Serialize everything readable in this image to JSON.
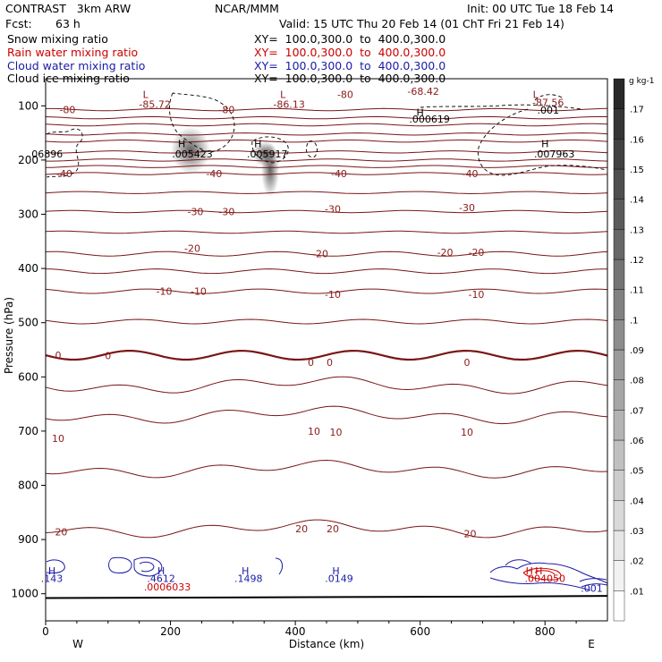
{
  "header": {
    "model": "CONTRAST   3km ARW",
    "center": "NCAR/MMM",
    "init": "Init: 00 UTC Tue 18 Feb 14",
    "fcst_label": "Fcst:",
    "fcst_value": "63 h",
    "valid": "Valid: 15 UTC Thu 20 Feb 14 (01 ChT Fri 21 Feb 14)"
  },
  "fields": [
    {
      "name": "Snow mixing ratio",
      "color": "#000000",
      "xy": "XY=  100.0,300.0  to  400.0,300.0"
    },
    {
      "name": "Rain water mixing ratio",
      "color": "#cc0000",
      "xy": "XY=  100.0,300.0  to  400.0,300.0"
    },
    {
      "name": "Cloud water mixing ratio",
      "color": "#1a1aa6",
      "xy": "XY=  100.0,300.0  to  400.0,300.0"
    },
    {
      "name": "Cloud ice mixing ratio",
      "color": "#000000",
      "xy": "XY=  100.0,300.0  to  400.0,300.0"
    }
  ],
  "chart_data": {
    "type": "contour",
    "xlabel": "Distance (km)",
    "ylabel": "Pressure (hPa)",
    "xlim": [
      0,
      900
    ],
    "ylim": [
      1050,
      50
    ],
    "xticks": [
      0,
      200,
      400,
      600,
      800
    ],
    "yticks": [
      100,
      200,
      300,
      400,
      500,
      600,
      700,
      800,
      900,
      1000
    ],
    "left_end_label": "W",
    "right_end_label": "E",
    "temperature_contours": [
      {
        "label": "-80",
        "p": 107
      },
      {
        "label": "-40",
        "p": 225
      },
      {
        "label": "-30",
        "p": 295
      },
      {
        "label": "-20",
        "p": 373
      },
      {
        "label": "-10",
        "p": 442
      },
      {
        "label": "0",
        "p": 560
      },
      {
        "label": "10",
        "p": 670
      },
      {
        "label": "20",
        "p": 880
      }
    ],
    "colorbar": {
      "unit": "g kg-1",
      "ticks": [
        ".01",
        ".02",
        ".03",
        ".04",
        ".05",
        ".06",
        ".07",
        ".08",
        ".09",
        ".1",
        ".11",
        ".12",
        ".13",
        ".14",
        ".15",
        ".16",
        ".17"
      ]
    },
    "annotations": [
      {
        "text": "L",
        "x": 160,
        "p": 79,
        "color": "#8b1a1a"
      },
      {
        "text": "-85.72",
        "x": 175,
        "p": 97,
        "color": "#8b1a1a"
      },
      {
        "text": "L",
        "x": 380,
        "p": 79,
        "color": "#8b1a1a"
      },
      {
        "text": "-86.13",
        "x": 390,
        "p": 97,
        "color": "#8b1a1a"
      },
      {
        "text": "-80",
        "x": 480,
        "p": 79,
        "color": "#8b1a1a"
      },
      {
        "text": "-68.42",
        "x": 605,
        "p": 73,
        "color": "#8b1a1a"
      },
      {
        "text": "L",
        "x": 785,
        "p": 79,
        "color": "#8b1a1a"
      },
      {
        "text": "-87.56",
        "x": 805,
        "p": 94,
        "color": "#8b1a1a"
      },
      {
        "text": "-80",
        "x": 35,
        "p": 107,
        "color": "#8b1a1a"
      },
      {
        "text": "-80",
        "x": 290,
        "p": 107,
        "color": "#8b1a1a"
      },
      {
        "text": "H",
        "x": 600,
        "p": 112,
        "color": "#000000"
      },
      {
        "text": ".000619",
        "x": 615,
        "p": 124,
        "color": "#000000"
      },
      {
        "text": ".001",
        "x": 805,
        "p": 108,
        "color": "#000000"
      },
      {
        "text": ".06896",
        "x": 0,
        "p": 189,
        "color": "#000000"
      },
      {
        "text": "H",
        "x": 218,
        "p": 170,
        "color": "#000000"
      },
      {
        "text": ".005423",
        "x": 235,
        "p": 189,
        "color": "#000000"
      },
      {
        "text": "H",
        "x": 340,
        "p": 170,
        "color": "#000000"
      },
      {
        "text": ".005917",
        "x": 355,
        "p": 189,
        "color": "#000000"
      },
      {
        "text": "H",
        "x": 800,
        "p": 170,
        "color": "#000000"
      },
      {
        "text": ".007963",
        "x": 815,
        "p": 189,
        "color": "#000000"
      },
      {
        "text": "-40",
        "x": 30,
        "p": 225,
        "color": "#8b1a1a"
      },
      {
        "text": "-40",
        "x": 270,
        "p": 225,
        "color": "#8b1a1a"
      },
      {
        "text": "-40",
        "x": 470,
        "p": 225,
        "color": "#8b1a1a"
      },
      {
        "text": "-40",
        "x": 680,
        "p": 225,
        "color": "#8b1a1a"
      },
      {
        "text": "-30",
        "x": 240,
        "p": 295,
        "color": "#8b1a1a"
      },
      {
        "text": "-30",
        "x": 290,
        "p": 295,
        "color": "#8b1a1a"
      },
      {
        "text": "-30",
        "x": 460,
        "p": 290,
        "color": "#8b1a1a"
      },
      {
        "text": "-30",
        "x": 675,
        "p": 288,
        "color": "#8b1a1a"
      },
      {
        "text": "-20",
        "x": 235,
        "p": 363,
        "color": "#8b1a1a"
      },
      {
        "text": "-20",
        "x": 440,
        "p": 373,
        "color": "#8b1a1a"
      },
      {
        "text": "-20",
        "x": 640,
        "p": 370,
        "color": "#8b1a1a"
      },
      {
        "text": "-20",
        "x": 690,
        "p": 370,
        "color": "#8b1a1a"
      },
      {
        "text": "-10",
        "x": 190,
        "p": 442,
        "color": "#8b1a1a"
      },
      {
        "text": "-10",
        "x": 245,
        "p": 442,
        "color": "#8b1a1a"
      },
      {
        "text": "-10",
        "x": 460,
        "p": 448,
        "color": "#8b1a1a"
      },
      {
        "text": "-10",
        "x": 690,
        "p": 448,
        "color": "#8b1a1a"
      },
      {
        "text": "0",
        "x": 20,
        "p": 560,
        "color": "#8b1a1a"
      },
      {
        "text": "0",
        "x": 100,
        "p": 561,
        "color": "#8b1a1a"
      },
      {
        "text": "0",
        "x": 425,
        "p": 573,
        "color": "#8b1a1a"
      },
      {
        "text": "0",
        "x": 455,
        "p": 573,
        "color": "#8b1a1a"
      },
      {
        "text": "0",
        "x": 675,
        "p": 573,
        "color": "#8b1a1a"
      },
      {
        "text": "10",
        "x": 20,
        "p": 713,
        "color": "#8b1a1a"
      },
      {
        "text": "10",
        "x": 430,
        "p": 700,
        "color": "#8b1a1a"
      },
      {
        "text": "10",
        "x": 465,
        "p": 702,
        "color": "#8b1a1a"
      },
      {
        "text": "10",
        "x": 675,
        "p": 702,
        "color": "#8b1a1a"
      },
      {
        "text": "20",
        "x": 25,
        "p": 886,
        "color": "#8b1a1a"
      },
      {
        "text": "20",
        "x": 410,
        "p": 880,
        "color": "#8b1a1a"
      },
      {
        "text": "20",
        "x": 460,
        "p": 880,
        "color": "#8b1a1a"
      },
      {
        "text": "20",
        "x": 680,
        "p": 889,
        "color": "#8b1a1a"
      },
      {
        "text": "H",
        "x": 10,
        "p": 958,
        "color": "#1a1aa6"
      },
      {
        "text": ".143",
        "x": 10,
        "p": 972,
        "color": "#1a1aa6"
      },
      {
        "text": "H",
        "x": 185,
        "p": 958,
        "color": "#1a1aa6"
      },
      {
        "text": ".4612",
        "x": 185,
        "p": 972,
        "color": "#1a1aa6"
      },
      {
        "text": ".0006033",
        "x": 195,
        "p": 987,
        "color": "#cc0000"
      },
      {
        "text": "H",
        "x": 320,
        "p": 958,
        "color": "#1a1aa6"
      },
      {
        "text": ".1498",
        "x": 325,
        "p": 972,
        "color": "#1a1aa6"
      },
      {
        "text": "H",
        "x": 465,
        "p": 958,
        "color": "#1a1aa6"
      },
      {
        "text": ".0149",
        "x": 470,
        "p": 972,
        "color": "#1a1aa6"
      },
      {
        "text": "H",
        "x": 775,
        "p": 958,
        "color": "#cc0000"
      },
      {
        "text": "H",
        "x": 790,
        "p": 958,
        "color": "#cc0000"
      },
      {
        "text": ".004050",
        "x": 800,
        "p": 972,
        "color": "#cc0000"
      },
      {
        "text": ".001",
        "x": 875,
        "p": 990,
        "color": "#1a1aa6"
      }
    ]
  }
}
